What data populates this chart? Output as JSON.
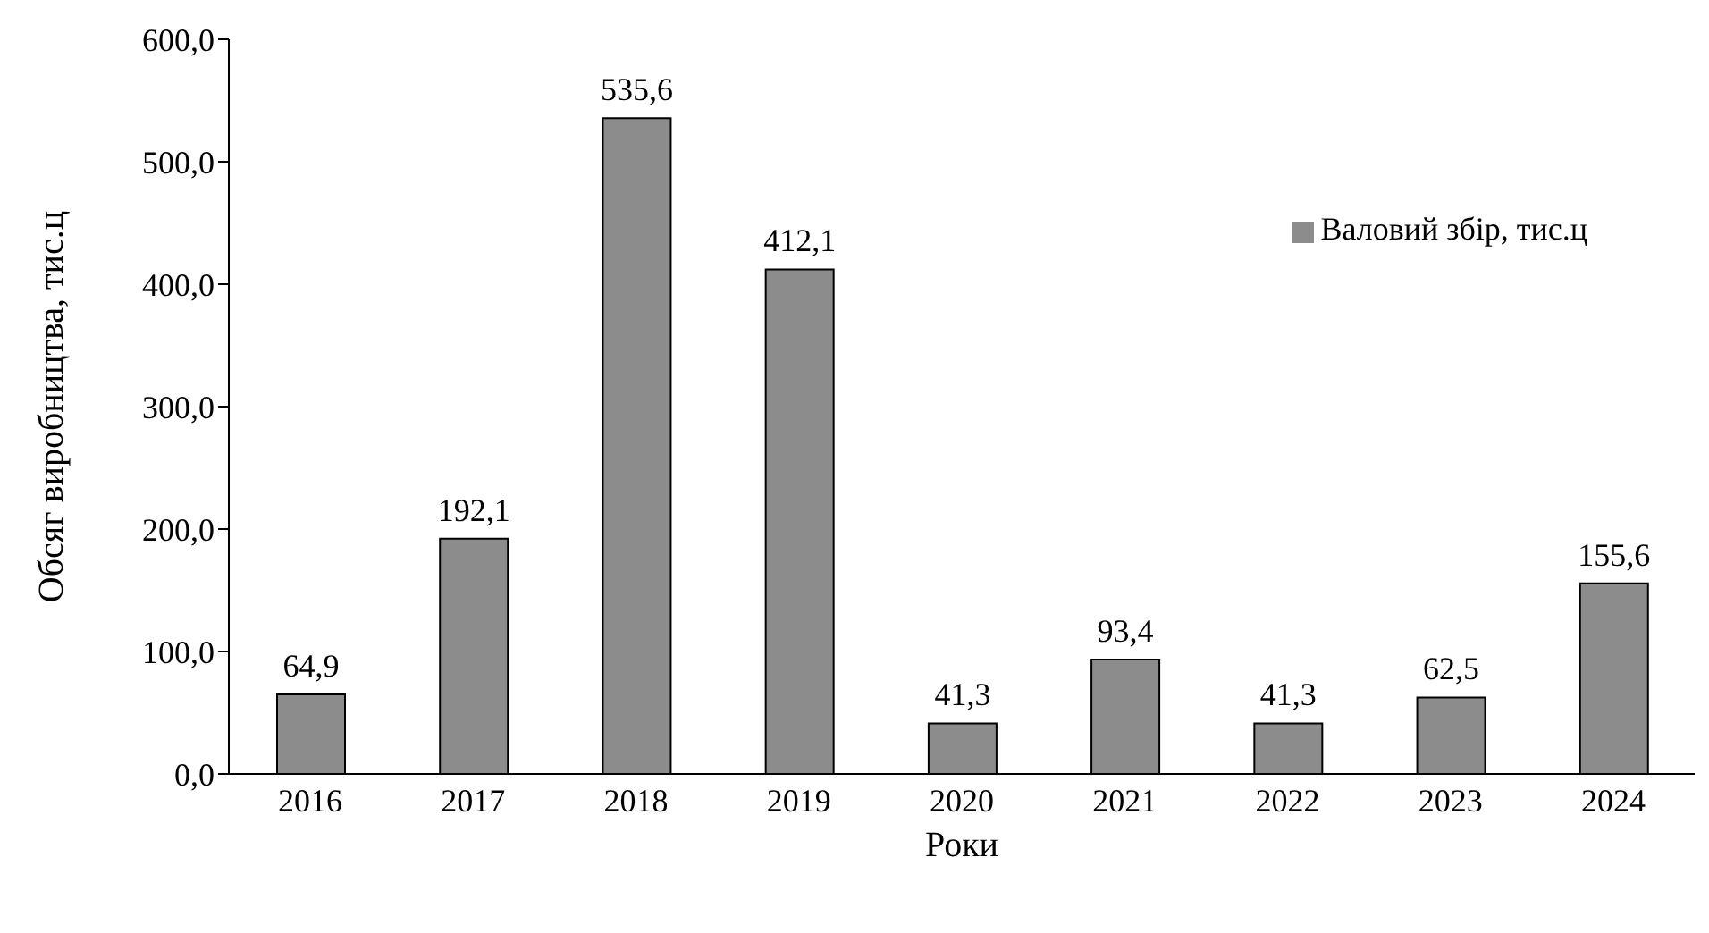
{
  "chart_data": {
    "type": "bar",
    "xlabel": "Роки",
    "ylabel": "Обсяг виробництва, тис.ц",
    "categories": [
      "2016",
      "2017",
      "2018",
      "2019",
      "2020",
      "2021",
      "2022",
      "2023",
      "2024"
    ],
    "series": [
      {
        "name": "Валовий збір, тис.ц",
        "color": "#8c8c8c",
        "values": [
          64.9,
          192.1,
          535.6,
          412.1,
          41.3,
          93.4,
          41.3,
          62.5,
          155.6
        ],
        "value_labels": [
          "64,9",
          "192,1",
          "535,6",
          "412,1",
          "41,3",
          "93,4",
          "41,3",
          "62,5",
          "155,6"
        ]
      }
    ],
    "ylim": [
      0,
      600
    ],
    "yticks": [
      {
        "value": 0,
        "label": "0,0"
      },
      {
        "value": 100,
        "label": "100,0"
      },
      {
        "value": 200,
        "label": "200,0"
      },
      {
        "value": 300,
        "label": "300,0"
      },
      {
        "value": 400,
        "label": "400,0"
      },
      {
        "value": 500,
        "label": "500,0"
      },
      {
        "value": 600,
        "label": "600,0"
      }
    ],
    "legend": "top right",
    "grid": false
  }
}
